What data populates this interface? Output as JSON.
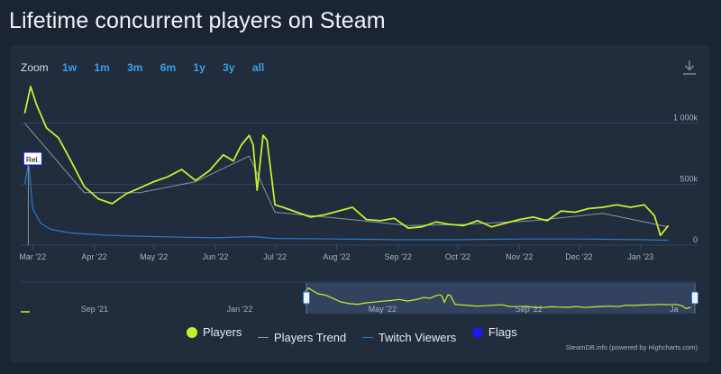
{
  "page": {
    "title": "Lifetime concurrent players on Steam"
  },
  "zoom": {
    "label": "Zoom",
    "buttons": [
      "1w",
      "1m",
      "3m",
      "6m",
      "1y",
      "3y",
      "all"
    ]
  },
  "icons": {
    "download": "download-icon"
  },
  "colors": {
    "players": "#c8f031",
    "trend": "#8a94a3",
    "twitch": "#2a7cc7",
    "flags": "#1a1ae6"
  },
  "flag_marker": {
    "label": "Rel."
  },
  "legend": [
    {
      "label": "Players",
      "symbol": "circle",
      "color": "#c8f031"
    },
    {
      "label": "Players Trend",
      "symbol": "line",
      "color": "#8a94a3"
    },
    {
      "label": "Twitch Viewers",
      "symbol": "line",
      "color": "#2a7cc7"
    },
    {
      "label": "Flags",
      "symbol": "circle",
      "color": "#1a1ae6"
    }
  ],
  "credits": "SteamDB.info (powered by Highcharts.com)",
  "navigator": {
    "x_ticks": [
      "Sep '21",
      "Jan '22",
      "May '22",
      "Sep '22",
      "Ja"
    ]
  },
  "chart_data": {
    "type": "line",
    "title": "Lifetime concurrent players on Steam",
    "x_ticks": [
      "Mar '22",
      "Apr '22",
      "May '22",
      "Jun '22",
      "Jul '22",
      "Aug '22",
      "Sep '22",
      "Oct '22",
      "Nov '22",
      "Dec '22",
      "Jan '23"
    ],
    "y_ticks": [
      "0",
      "500k",
      "1 000k"
    ],
    "ylim": [
      0,
      1330000
    ],
    "grid": true,
    "legend_position": "bottom",
    "series": [
      {
        "name": "Players",
        "x": [
          "2022-02-25",
          "2022-02-28",
          "2022-03-03",
          "2022-03-08",
          "2022-03-14",
          "2022-03-20",
          "2022-03-27",
          "2022-04-03",
          "2022-04-10",
          "2022-04-17",
          "2022-04-24",
          "2022-05-01",
          "2022-05-08",
          "2022-05-15",
          "2022-05-22",
          "2022-05-29",
          "2022-06-05",
          "2022-06-10",
          "2022-06-14",
          "2022-06-18",
          "2022-06-20",
          "2022-06-22",
          "2022-06-25",
          "2022-06-27",
          "2022-07-01",
          "2022-07-05",
          "2022-07-12",
          "2022-07-19",
          "2022-07-26",
          "2022-08-02",
          "2022-08-09",
          "2022-08-16",
          "2022-08-23",
          "2022-08-30",
          "2022-09-06",
          "2022-09-13",
          "2022-09-20",
          "2022-09-27",
          "2022-10-04",
          "2022-10-11",
          "2022-10-18",
          "2022-10-25",
          "2022-11-01",
          "2022-11-08",
          "2022-11-15",
          "2022-11-22",
          "2022-11-29",
          "2022-12-06",
          "2022-12-13",
          "2022-12-20",
          "2022-12-27",
          "2023-01-03",
          "2023-01-08",
          "2023-01-11",
          "2023-01-15"
        ],
        "values": [
          1080000,
          1300000,
          1150000,
          960000,
          880000,
          700000,
          480000,
          380000,
          340000,
          420000,
          470000,
          520000,
          560000,
          620000,
          530000,
          610000,
          740000,
          690000,
          820000,
          900000,
          820000,
          450000,
          900000,
          860000,
          330000,
          310000,
          270000,
          230000,
          250000,
          280000,
          310000,
          210000,
          200000,
          220000,
          140000,
          150000,
          190000,
          170000,
          160000,
          200000,
          150000,
          180000,
          210000,
          230000,
          200000,
          280000,
          270000,
          300000,
          310000,
          330000,
          310000,
          330000,
          240000,
          80000,
          160000
        ]
      },
      {
        "name": "Players Trend",
        "x": [
          "2022-02-25",
          "2022-03-27",
          "2022-04-24",
          "2022-05-22",
          "2022-06-18",
          "2022-07-01",
          "2022-08-02",
          "2022-09-06",
          "2022-10-04",
          "2022-11-08",
          "2022-12-13",
          "2023-01-15"
        ],
        "values": [
          1000000,
          430000,
          430000,
          520000,
          730000,
          270000,
          220000,
          160000,
          170000,
          200000,
          260000,
          150000
        ]
      },
      {
        "name": "Twitch Viewers",
        "x": [
          "2022-02-25",
          "2022-02-27",
          "2022-03-01",
          "2022-03-05",
          "2022-03-10",
          "2022-03-20",
          "2022-04-03",
          "2022-04-17",
          "2022-05-01",
          "2022-05-15",
          "2022-06-01",
          "2022-06-20",
          "2022-07-01",
          "2022-08-01",
          "2022-09-01",
          "2022-10-01",
          "2022-11-01",
          "2022-12-01",
          "2023-01-01",
          "2023-01-15"
        ],
        "values": [
          500000,
          680000,
          300000,
          180000,
          130000,
          100000,
          85000,
          75000,
          70000,
          65000,
          60000,
          70000,
          55000,
          50000,
          45000,
          45000,
          50000,
          50000,
          45000,
          40000
        ]
      },
      {
        "name": "Flags",
        "x": [
          "2022-02-25"
        ],
        "values": [
          0
        ]
      }
    ]
  }
}
